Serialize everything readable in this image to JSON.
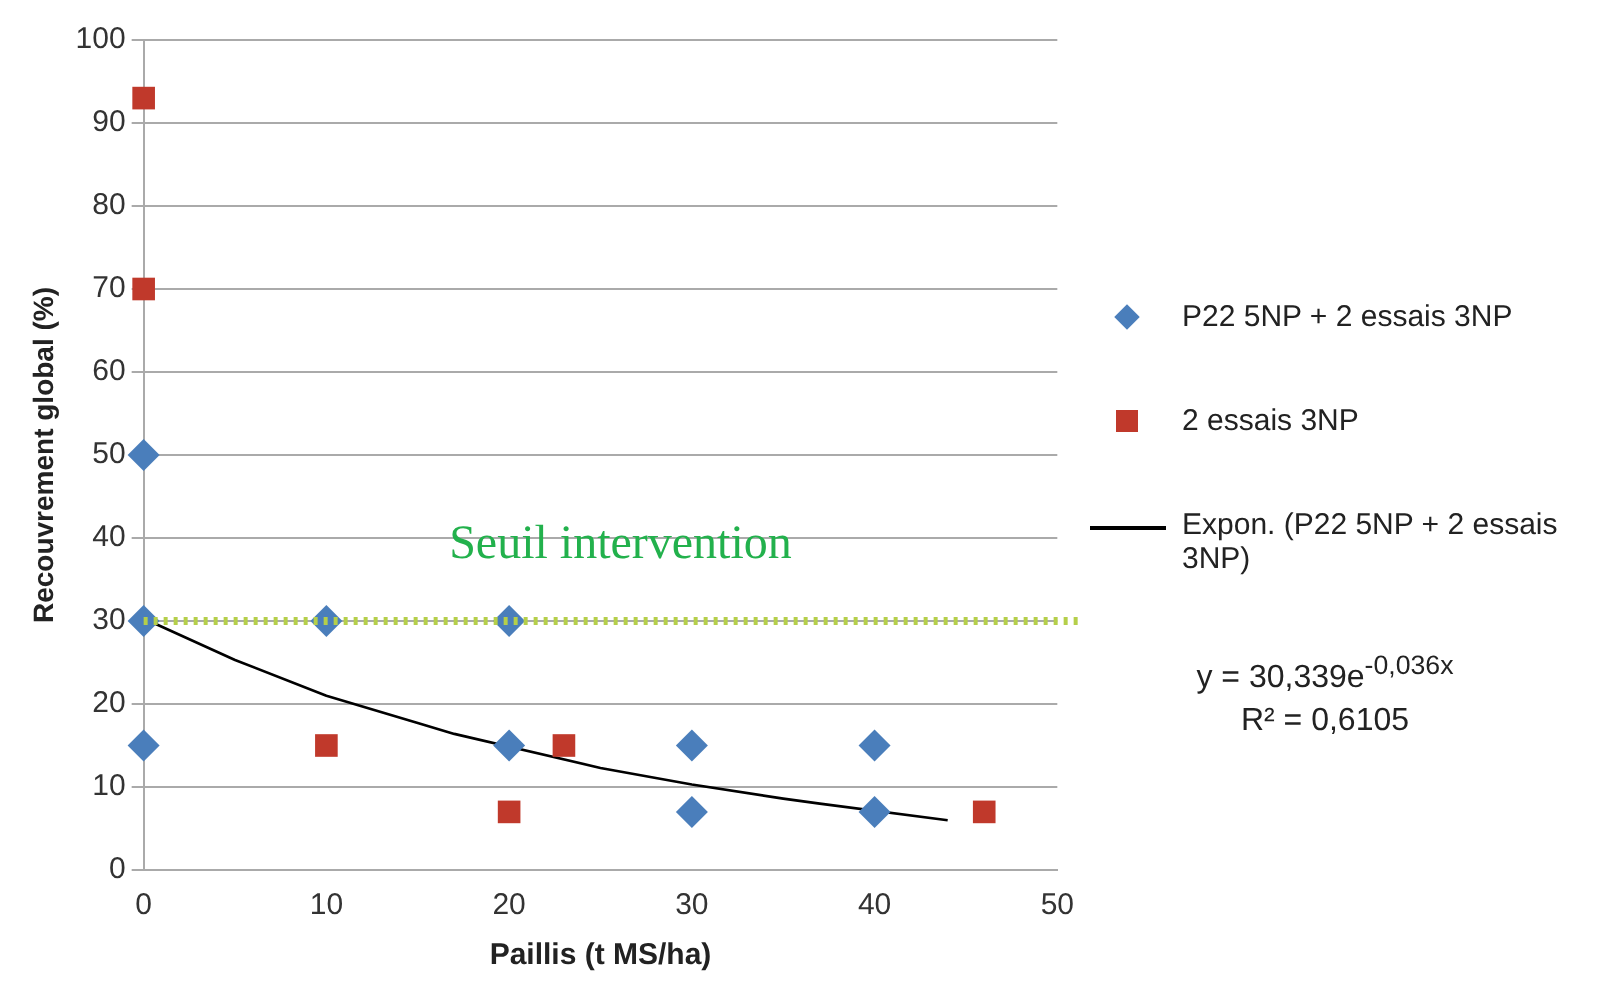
{
  "chart_data": {
    "type": "scatter",
    "xlabel": "Paillis (t MS/ha)",
    "ylabel": "Recouvrement global (%)",
    "xlim": [
      0,
      50
    ],
    "xticks": [
      0,
      10,
      20,
      30,
      40,
      50
    ],
    "ylim": [
      0,
      100
    ],
    "yticks": [
      0,
      10,
      20,
      30,
      40,
      50,
      60,
      70,
      80,
      90,
      100
    ],
    "grid": "y",
    "legend": "right",
    "series": [
      {
        "name": "P22 5NP + 2 essais 3NP",
        "color": "#4a7ebb",
        "marker": "diamond",
        "x": [
          0,
          0,
          0,
          10,
          20,
          20,
          30,
          30,
          40,
          40
        ],
        "values": [
          50,
          30,
          15,
          30,
          30,
          15,
          15,
          7,
          15,
          7
        ]
      },
      {
        "name": "2 essais 3NP",
        "color": "#c0392b",
        "marker": "square",
        "x": [
          0,
          0,
          10,
          20,
          23,
          46
        ],
        "values": [
          93,
          70,
          15,
          7,
          15,
          7
        ]
      },
      {
        "name": "Expon. (P22 5NP + 2 essais 3NP)",
        "type": "line",
        "color": "#000000",
        "marker": "none",
        "x": [
          0,
          5,
          10,
          15,
          17,
          25,
          30,
          35,
          37,
          44
        ],
        "values": [
          30.3,
          25.3,
          21,
          17.7,
          16.4,
          12.3,
          10.3,
          8.6,
          8,
          6
        ]
      }
    ],
    "ref_lines": [
      {
        "axis": "y",
        "value": 30,
        "label": "Seuil intervention",
        "color": "#b5cf4a",
        "line_style": "dotted"
      }
    ],
    "annotations": [
      "y = 30,339e$^{-0,036x}$",
      "R² = 0,6105"
    ]
  }
}
